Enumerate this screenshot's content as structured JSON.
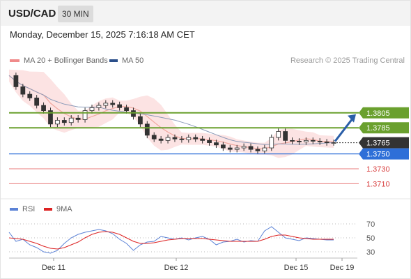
{
  "header": {
    "pair": "USD/CAD",
    "timeframe": "30 MIN"
  },
  "datetime": "Monday, December 15, 2025 7:16:18 AM CET",
  "legend": {
    "ma20_label": "MA 20 + Bollinger Bands",
    "ma50_label": "MA 50",
    "rsi_label": "RSI",
    "ma9_label": "9MA",
    "credit": "Research © 2025 Trading Central"
  },
  "colors": {
    "green": "#6aa02e",
    "blue": "#2e6fd8",
    "red": "#e87b7b",
    "dark": "#333333",
    "band": "#fbdcdc",
    "ma20": "#f0a8a0",
    "ma50": "#8a9ab8",
    "arrow": "#2b5fa8",
    "rsi": "#5b82d6",
    "rsi_ma": "#dd2222"
  },
  "chart_data": [
    {
      "type": "line",
      "name": "price",
      "x_labels": [
        "Dec 11",
        "Dec 12",
        "Dec 15",
        "Dec 19"
      ],
      "ylim": [
        1.3701,
        1.386
      ],
      "levels": [
        {
          "value": 1.3805,
          "label": "1.3805",
          "style": "green"
        },
        {
          "value": 1.3785,
          "label": "1.3785",
          "style": "green"
        },
        {
          "value": 1.3765,
          "label": "1.3765",
          "style": "dark"
        },
        {
          "value": 1.375,
          "label": "1.3750",
          "style": "blue"
        },
        {
          "value": 1.373,
          "label": "1.3730",
          "style": "red"
        },
        {
          "value": 1.371,
          "label": "1.3710",
          "style": "red"
        }
      ],
      "current_price": 1.3765,
      "forecast_arrow": {
        "from": 1.3765,
        "to": 1.3805
      },
      "close": [
        1.3855,
        1.384,
        1.383,
        1.3825,
        1.3815,
        1.3808,
        1.379,
        1.3795,
        1.3792,
        1.3798,
        1.3796,
        1.3808,
        1.3812,
        1.3815,
        1.3818,
        1.3816,
        1.3812,
        1.3808,
        1.38,
        1.379,
        1.3775,
        1.377,
        1.3768,
        1.3772,
        1.377,
        1.3769,
        1.3772,
        1.377,
        1.3768,
        1.3765,
        1.3762,
        1.3758,
        1.3756,
        1.3758,
        1.376,
        1.3756,
        1.3754,
        1.3758,
        1.3772,
        1.378,
        1.3768,
        1.3767,
        1.3766,
        1.3768,
        1.3767,
        1.3766,
        1.3765,
        1.3765
      ]
    },
    {
      "type": "line",
      "name": "rsi",
      "yticks": [
        70,
        50,
        30
      ],
      "ylim": [
        20,
        80
      ],
      "values": [
        58,
        45,
        48,
        40,
        36,
        30,
        28,
        32,
        42,
        50,
        55,
        58,
        60,
        62,
        60,
        56,
        48,
        42,
        32,
        40,
        44,
        45,
        52,
        50,
        48,
        50,
        47,
        50,
        52,
        48,
        40,
        44,
        45,
        48,
        44,
        46,
        45,
        60,
        66,
        58,
        50,
        48,
        46,
        50,
        49,
        48,
        47,
        47
      ],
      "ma": [
        50,
        49,
        48,
        45,
        42,
        38,
        35,
        34,
        36,
        40,
        44,
        50,
        55,
        58,
        59,
        58,
        55,
        50,
        45,
        42,
        42,
        43,
        45,
        47,
        48,
        49,
        49,
        49,
        49,
        48,
        47,
        46,
        45,
        45,
        45,
        45,
        45,
        48,
        52,
        54,
        54,
        52,
        50,
        49,
        48,
        48,
        48,
        48
      ]
    }
  ]
}
